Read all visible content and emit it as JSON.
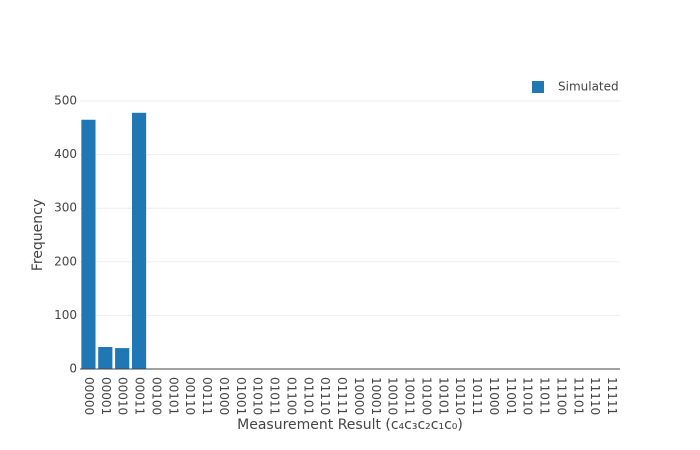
{
  "chart_data": {
    "type": "bar",
    "x_label": "Measurement Result (c₄c₃c₂c₁c₀)",
    "y_label": "Frequency",
    "categories": [
      "00000",
      "00001",
      "00010",
      "00011",
      "00100",
      "00101",
      "00110",
      "00111",
      "01000",
      "01001",
      "01010",
      "01011",
      "01100",
      "01101",
      "01110",
      "01111",
      "10000",
      "10001",
      "10010",
      "10011",
      "10100",
      "10101",
      "10110",
      "10111",
      "11000",
      "11001",
      "11010",
      "11011",
      "11100",
      "11101",
      "11110",
      "11111"
    ],
    "series": [
      {
        "name": "Simulated",
        "color": "#1f77b4",
        "values": [
          465,
          41,
          39,
          478,
          0,
          0,
          0,
          0,
          0,
          0,
          0,
          0,
          0,
          0,
          0,
          0,
          0,
          0,
          0,
          0,
          0,
          0,
          0,
          0,
          0,
          0,
          0,
          0,
          0,
          0,
          0,
          0
        ]
      }
    ],
    "ylim": [
      0,
      500
    ],
    "yticks": [
      0,
      100,
      200,
      300,
      400,
      500
    ],
    "grid": true,
    "legend": "top-right"
  }
}
